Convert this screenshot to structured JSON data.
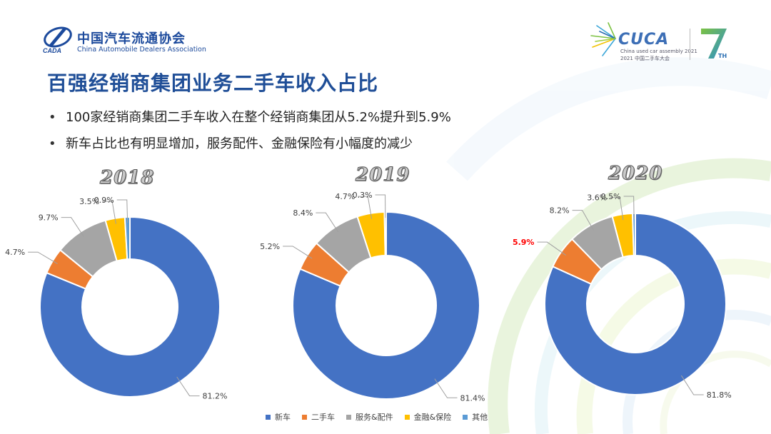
{
  "header": {
    "org_name_cn": "中国汽车流通协会",
    "org_name_en": "China Automobile Dealers Association",
    "event_name": "CUCA",
    "event_sub_en": "China used car assembly 2021",
    "event_sub_cn": "2021 中国二手车大会",
    "anniversary_mark": "7",
    "anniversary_suffix": "TH"
  },
  "title": "百强经销商集团业务二手车收入占比",
  "bullets": [
    "100家经销商集团二手车收入在整个经销商集团从5.2%提升到5.9%",
    "新车占比也有明显增加，服务配件、金融保险有小幅度的减少"
  ],
  "colors": {
    "新车": "#4472c4",
    "二手车": "#ed7d31",
    "服务&配件": "#a5a5a5",
    "金融&保险": "#ffc000",
    "其他": "#5b9bd5",
    "highlight": "#ff0000"
  },
  "chart_data": [
    {
      "type": "pie",
      "title": "2018",
      "categories": [
        "新车",
        "二手车",
        "服务&配件",
        "金融&保险",
        "其他"
      ],
      "values": [
        81.2,
        4.7,
        9.7,
        3.5,
        0.9
      ],
      "labels": [
        "81.2%",
        "4.7%",
        "9.7%",
        "3.5%",
        "0.9%"
      ],
      "highlight": null,
      "legend": "bottom"
    },
    {
      "type": "pie",
      "title": "2019",
      "categories": [
        "新车",
        "二手车",
        "服务&配件",
        "金融&保险",
        "其他"
      ],
      "values": [
        81.4,
        5.2,
        8.4,
        4.7,
        0.3
      ],
      "labels": [
        "81.4%",
        "5.2%",
        "8.4%",
        "4.7%",
        "0.3%"
      ],
      "highlight": null,
      "legend": "bottom"
    },
    {
      "type": "pie",
      "title": "2020",
      "categories": [
        "新车",
        "二手车",
        "服务&配件",
        "金融&保险",
        "其他"
      ],
      "values": [
        81.8,
        5.9,
        8.2,
        3.6,
        0.5
      ],
      "labels": [
        "81.8%",
        "5.9%",
        "8.2%",
        "3.6%",
        "0.5%"
      ],
      "highlight": "二手车",
      "legend": "bottom"
    }
  ],
  "legend": [
    "新车",
    "二手车",
    "服务&配件",
    "金融&保险",
    "其他"
  ]
}
